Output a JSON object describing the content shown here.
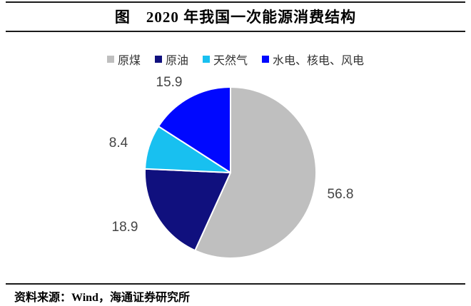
{
  "header": {
    "title": "图　2020 年我国一次能源消费结构"
  },
  "chart_data": {
    "type": "pie",
    "title": "2020 年我国一次能源消费结构",
    "categories": [
      "原煤",
      "原油",
      "天然气",
      "水电、核电、风电"
    ],
    "values": [
      56.8,
      18.9,
      8.4,
      15.9
    ],
    "colors": [
      "#BFBFBF",
      "#10107E",
      "#18C0F0",
      "#0008FF"
    ],
    "start_angle_deg": 0,
    "direction": "clockwise",
    "legend_position": "top",
    "data_labels_shown": true,
    "label_color": "#444444",
    "slice_border_color": "#FFFFFF"
  },
  "footer": {
    "source": "资料来源：Wind，海通证券研究所"
  }
}
